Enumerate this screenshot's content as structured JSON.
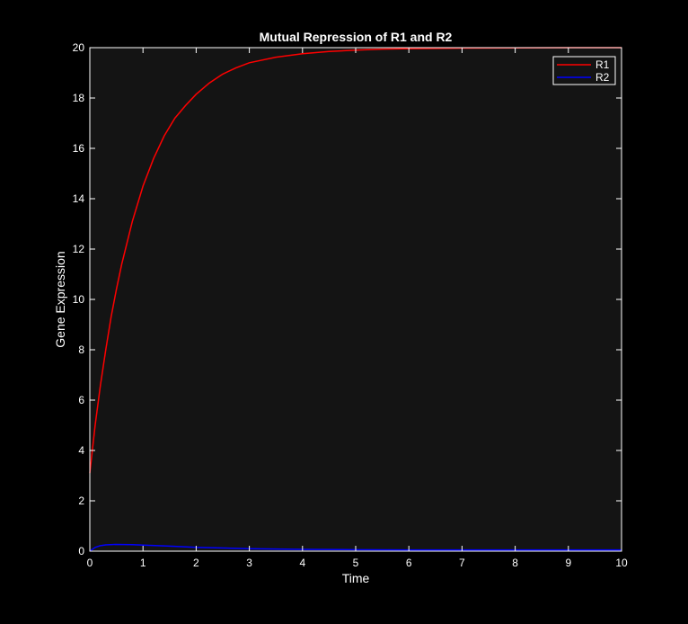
{
  "chart_data": {
    "type": "line",
    "title": "Mutual Repression of R1 and R2",
    "xlabel": "Time",
    "ylabel": "Gene Expression",
    "xlim": [
      0,
      10
    ],
    "ylim": [
      0,
      20
    ],
    "xticks": [
      0,
      1,
      2,
      3,
      4,
      5,
      6,
      7,
      8,
      9,
      10
    ],
    "yticks": [
      0,
      2,
      4,
      6,
      8,
      10,
      12,
      14,
      16,
      18,
      20
    ],
    "grid": false,
    "legend_position": "top-right",
    "background": "#141414",
    "figure_background": "#000000",
    "series": [
      {
        "name": "R1",
        "color": "#ff0000",
        "x": [
          0,
          0.1,
          0.2,
          0.3,
          0.4,
          0.5,
          0.6,
          0.8,
          1.0,
          1.2,
          1.4,
          1.6,
          1.8,
          2.0,
          2.25,
          2.5,
          2.75,
          3.0,
          3.5,
          4.0,
          4.5,
          5.0,
          5.5,
          6.0,
          7.0,
          8.0,
          9.0,
          10.0
        ],
        "y": [
          3.1,
          5.0,
          6.6,
          8.0,
          9.3,
          10.4,
          11.4,
          13.1,
          14.5,
          15.6,
          16.5,
          17.2,
          17.7,
          18.15,
          18.6,
          18.95,
          19.2,
          19.4,
          19.62,
          19.76,
          19.85,
          19.9,
          19.94,
          19.96,
          19.98,
          19.99,
          20.0,
          20.0
        ]
      },
      {
        "name": "R2",
        "color": "#0000ff",
        "x": [
          0,
          0.1,
          0.2,
          0.3,
          0.5,
          0.8,
          1.0,
          1.5,
          2.0,
          3.0,
          4.0,
          5.0,
          6.0,
          8.0,
          10.0
        ],
        "y": [
          0.0,
          0.15,
          0.22,
          0.25,
          0.27,
          0.26,
          0.24,
          0.2,
          0.15,
          0.1,
          0.07,
          0.06,
          0.05,
          0.05,
          0.05
        ]
      }
    ]
  }
}
